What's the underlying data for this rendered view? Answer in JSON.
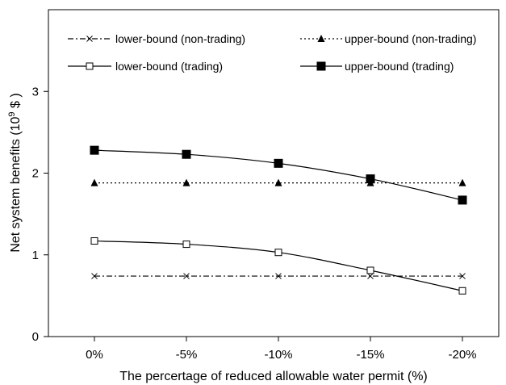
{
  "chart_data": {
    "type": "line",
    "title": "",
    "xlabel": "The percertage of reduced allowable water permit (%)",
    "ylabel": "Net system benefits (10",
    "ylabel_sup": "9",
    "ylabel_unit": " $ )",
    "categories": [
      "0%",
      "-5%",
      "-10%",
      "-15%",
      "-20%"
    ],
    "ylim": [
      0,
      4
    ],
    "yticks": [
      "0",
      "1",
      "2",
      "3"
    ],
    "grid": false,
    "legend_placement": "top",
    "series": [
      {
        "name": "lower-bound (non-trading)",
        "values": [
          0.74,
          0.74,
          0.74,
          0.74,
          0.74
        ],
        "line": "dashdot",
        "marker": "x"
      },
      {
        "name": "upper-bound (non-trading)",
        "values": [
          1.88,
          1.88,
          1.88,
          1.88,
          1.88
        ],
        "line": "dotted",
        "marker": "triangle"
      },
      {
        "name": "lower-bound (trading)",
        "values": [
          1.17,
          1.13,
          1.03,
          0.81,
          0.56
        ],
        "line": "solid",
        "marker": "open-square"
      },
      {
        "name": "upper-bound (trading)",
        "values": [
          2.28,
          2.23,
          2.12,
          1.93,
          1.67
        ],
        "line": "solid",
        "marker": "filled-square"
      }
    ]
  }
}
